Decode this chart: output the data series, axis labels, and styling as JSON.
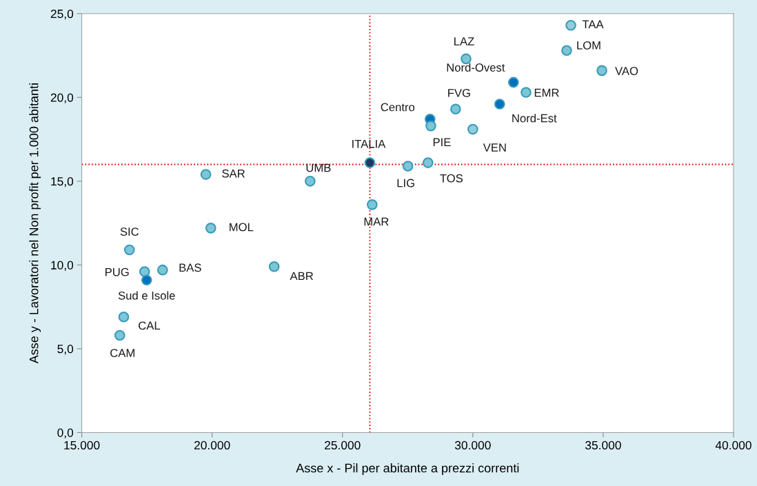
{
  "chart_data": {
    "type": "scatter",
    "xlabel": "Asse x - Pil per abitante a prezzi correnti",
    "ylabel": "Asse y - Lavoratori nel Non profit per 1.000 abitanti",
    "x": [
      33760,
      33600,
      34950,
      29740,
      31560,
      32040,
      31030,
      29340,
      28360,
      28390,
      30000,
      26050,
      27510,
      28280,
      19760,
      23760,
      26140,
      19950,
      16830,
      18100,
      17410,
      17490,
      22380,
      16610,
      16460
    ],
    "values": [
      24.3,
      22.8,
      21.6,
      22.3,
      20.9,
      20.3,
      19.6,
      19.3,
      18.7,
      18.3,
      18.1,
      16.1,
      15.9,
      16.1,
      15.4,
      15.0,
      13.6,
      12.2,
      10.9,
      9.7,
      9.6,
      9.1,
      9.9,
      6.9,
      5.8
    ],
    "colors": [
      "#92cddc",
      "#7cc6d8",
      "#7cc6d8",
      "#7cc6d8",
      "#0070c0",
      "#7cc6d8",
      "#0070c0",
      "#7cc6d8",
      "#0070c0",
      "#7cc6d8",
      "#92cddc",
      "#1f3864",
      "#7cc6d8",
      "#7cc6d8",
      "#7cc6d8",
      "#7cc6d8",
      "#7cc6d8",
      "#7cc6d8",
      "#7cc6d8",
      "#7cc6d8",
      "#7cc6d8",
      "#0070c0",
      "#7cc6d8",
      "#7cc6d8",
      "#7cc6d8"
    ],
    "annotations": [
      {
        "text": "TAA",
        "x": 33760,
        "y": 24.3
      },
      {
        "text": "LOM",
        "x": 33600,
        "y": 22.8
      },
      {
        "text": "VAO",
        "x": 34950,
        "y": 21.6
      },
      {
        "text": "LAZ",
        "x": 29740,
        "y": 22.3
      },
      {
        "text": "Nord-Ovest",
        "x": 31560,
        "y": 20.9
      },
      {
        "text": "EMR",
        "x": 32040,
        "y": 20.3
      },
      {
        "text": "Nord-Est",
        "x": 31030,
        "y": 19.6
      },
      {
        "text": "FVG",
        "x": 29340,
        "y": 19.3
      },
      {
        "text": "Centro",
        "x": 28360,
        "y": 18.7
      },
      {
        "text": "PIE",
        "x": 28390,
        "y": 18.3
      },
      {
        "text": "VEN",
        "x": 30000,
        "y": 18.1
      },
      {
        "text": "ITALIA",
        "x": 26050,
        "y": 16.1
      },
      {
        "text": "LIG",
        "x": 27510,
        "y": 15.9
      },
      {
        "text": "TOS",
        "x": 28280,
        "y": 16.1
      },
      {
        "text": "SAR",
        "x": 19760,
        "y": 15.4
      },
      {
        "text": "UMB",
        "x": 23760,
        "y": 15.0
      },
      {
        "text": "MAR",
        "x": 26140,
        "y": 13.6
      },
      {
        "text": "MOL",
        "x": 19950,
        "y": 12.2
      },
      {
        "text": "SIC",
        "x": 16830,
        "y": 10.9
      },
      {
        "text": "BAS",
        "x": 18100,
        "y": 9.7
      },
      {
        "text": "PUG",
        "x": 17410,
        "y": 9.6
      },
      {
        "text": "Sud e Isole",
        "x": 17490,
        "y": 9.1
      },
      {
        "text": "ABR",
        "x": 22380,
        "y": 9.9
      },
      {
        "text": "CAL",
        "x": 16610,
        "y": 6.9
      },
      {
        "text": "CAM",
        "x": 16460,
        "y": 5.8
      }
    ],
    "ref_lines": [
      {
        "axis": "x",
        "value": 26050,
        "color": "#e00000",
        "line_style": "dotted"
      },
      {
        "axis": "y",
        "value": 16.0,
        "color": "#e00000",
        "line_style": "dotted"
      }
    ],
    "xlim": [
      15000,
      40000
    ],
    "xticks": [
      {
        "value": 15000,
        "label": "15.000"
      },
      {
        "value": 20000,
        "label": "20.000"
      },
      {
        "value": 25000,
        "label": "25.000"
      },
      {
        "value": 30000,
        "label": "30.000"
      },
      {
        "value": 35000,
        "label": "35.000"
      },
      {
        "value": 40000,
        "label": "40.000"
      }
    ],
    "ylim": [
      0,
      25
    ],
    "yticks": [
      {
        "value": 0,
        "label": "0,0"
      },
      {
        "value": 5,
        "label": "5,0"
      },
      {
        "value": 10,
        "label": "10,0"
      },
      {
        "value": 15,
        "label": "15,0"
      },
      {
        "value": 20,
        "label": "20,0"
      },
      {
        "value": 25,
        "label": "25,0"
      }
    ],
    "grid": false,
    "marker": "circle"
  }
}
